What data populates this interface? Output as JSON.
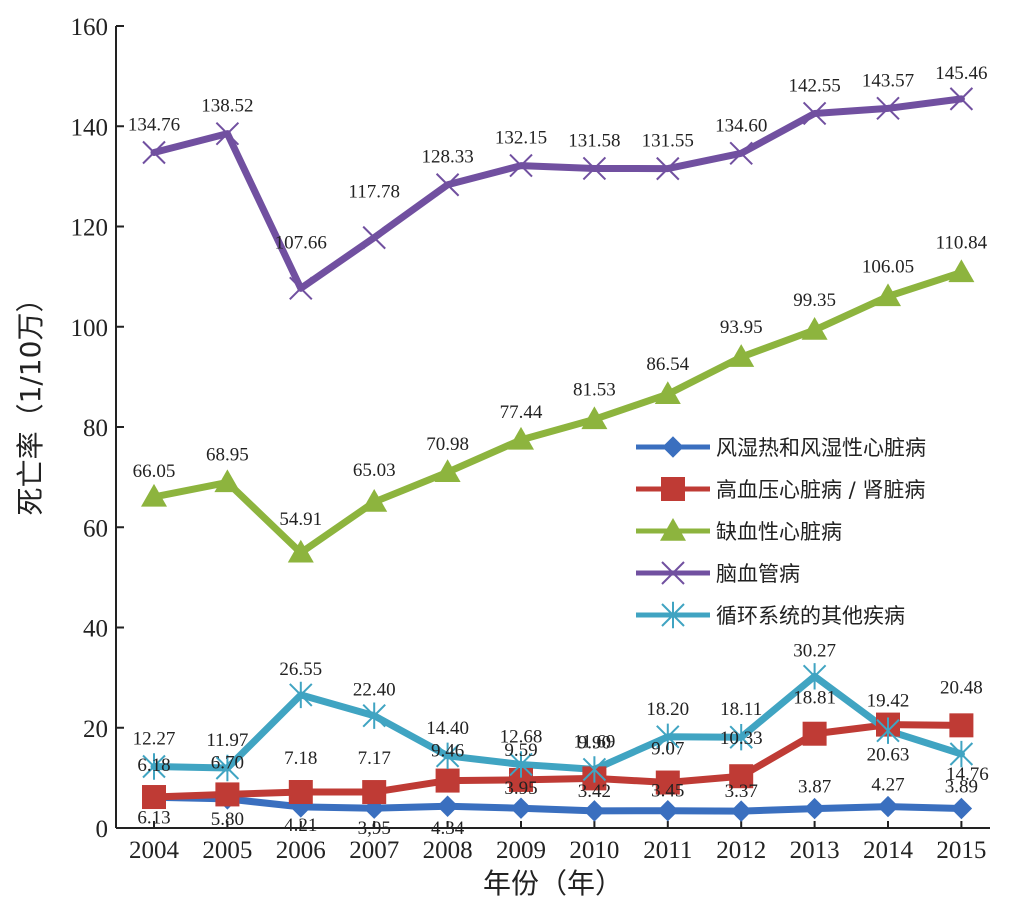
{
  "chart_data": {
    "type": "line",
    "xlabel": "年份（年）",
    "ylabel": "死亡率（1/10万）",
    "ylim": [
      0,
      160
    ],
    "yticks": [
      0,
      20,
      40,
      60,
      80,
      100,
      120,
      140,
      160
    ],
    "x": [
      "2004",
      "2005",
      "2006",
      "2007",
      "2008",
      "2009",
      "2010",
      "2011",
      "2012",
      "2013",
      "2014",
      "2015"
    ],
    "legend_position": "right-middle",
    "series": [
      {
        "name": "风湿热和风湿性心脏病",
        "color": "#3a6fbf",
        "marker": "diamond",
        "values": [
          6.13,
          5.8,
          4.21,
          3.95,
          4.34,
          3.95,
          3.42,
          3.45,
          3.37,
          3.87,
          4.27,
          3.89
        ],
        "labels": [
          "6.13",
          "5.80",
          "4.21",
          "3,95",
          "4.34",
          "3.95",
          "3.42",
          "3.45",
          "3.37",
          "3.87",
          "4.27",
          "3.89"
        ]
      },
      {
        "name": "高血压心脏病 / 肾脏病",
        "color": "#bf3b35",
        "marker": "square",
        "values": [
          6.18,
          6.7,
          7.18,
          7.17,
          9.46,
          9.59,
          9.9,
          9.07,
          10.33,
          18.81,
          20.63,
          20.48
        ],
        "labels": [
          "6.18",
          "6.70",
          "7.18",
          "7.17",
          "9.46",
          "9.59",
          "9.90",
          "9.07",
          "10.33",
          "18.81",
          "20.63",
          "20.48"
        ]
      },
      {
        "name": "缺血性心脏病",
        "color": "#8db43e",
        "marker": "triangle",
        "values": [
          66.05,
          68.95,
          54.91,
          65.03,
          70.98,
          77.44,
          81.53,
          86.54,
          93.95,
          99.35,
          106.05,
          110.84
        ],
        "labels": [
          "66.05",
          "68.95",
          "54.91",
          "65.03",
          "70.98",
          "77.44",
          "81.53",
          "86.54",
          "93.95",
          "99.35",
          "106.05",
          "110.84"
        ]
      },
      {
        "name": "脑血管病",
        "color": "#7150a0",
        "marker": "x",
        "values": [
          134.76,
          138.52,
          107.66,
          117.78,
          128.33,
          132.15,
          131.58,
          131.55,
          134.6,
          142.55,
          143.57,
          145.46
        ],
        "labels": [
          "134.76",
          "138.52",
          "107.66",
          "117.78",
          "128.33",
          "132.15",
          "131.58",
          "131.55",
          "134.60",
          "142.55",
          "143.57",
          "145.46"
        ]
      },
      {
        "name": "循环系统的其他疾病",
        "color": "#40a4c2",
        "marker": "star",
        "values": [
          12.27,
          11.97,
          26.55,
          22.4,
          14.4,
          12.68,
          11.69,
          18.2,
          18.11,
          30.27,
          19.42,
          14.76
        ],
        "labels": [
          "12.27",
          "11.97",
          "26.55",
          "22.40",
          "14.40",
          "12.68",
          "11.69",
          "18.20",
          "18.11",
          "30.27",
          "19.42",
          "14.76"
        ]
      }
    ]
  }
}
